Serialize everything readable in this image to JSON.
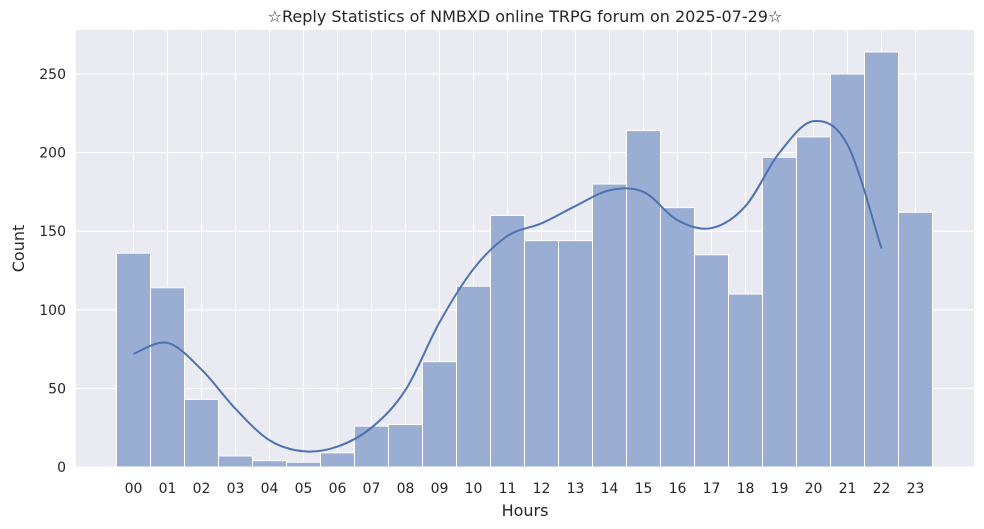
{
  "chart_data": {
    "type": "bar",
    "title": "☆Reply Statistics of NMBXD online TRPG forum on 2025-07-29☆",
    "xlabel": "Hours",
    "ylabel": "Count",
    "categories": [
      "00",
      "01",
      "02",
      "03",
      "04",
      "05",
      "06",
      "07",
      "08",
      "09",
      "10",
      "11",
      "12",
      "13",
      "14",
      "15",
      "16",
      "17",
      "18",
      "19",
      "20",
      "21",
      "22",
      "23"
    ],
    "values": [
      136,
      114,
      43,
      7,
      4,
      3,
      9,
      26,
      27,
      67,
      115,
      160,
      144,
      144,
      180,
      214,
      165,
      135,
      110,
      197,
      210,
      250,
      264,
      162
    ],
    "yticks": [
      0,
      50,
      100,
      150,
      200,
      250
    ],
    "ylim": [
      0,
      278
    ],
    "grid": true,
    "kde": {
      "name": "",
      "values": [
        72,
        79,
        62,
        37,
        17,
        10,
        13,
        25,
        49,
        92,
        126,
        147,
        155,
        166,
        176,
        175,
        157,
        152,
        166,
        200,
        220,
        205,
        139
      ]
    },
    "colors": {
      "bar_fill": "#9aadd3",
      "bar_edge": "#ffffff",
      "kde_line": "#4c72b0",
      "background": "#eaeaf2",
      "grid": "#ffffff"
    }
  }
}
